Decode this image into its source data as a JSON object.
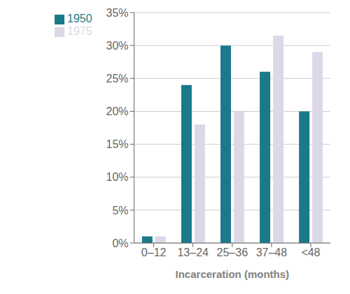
{
  "chart_data": {
    "type": "bar",
    "xlabel": "Incarceration (months)",
    "categories": [
      "0–12",
      "13–24",
      "25–36",
      "37–48",
      "<48"
    ],
    "series": [
      {
        "name": "1950",
        "color": "#1a7a8a",
        "values": [
          0.01,
          0.24,
          0.3,
          0.26,
          0.2
        ]
      },
      {
        "name": "1975",
        "color": "#ddd8e8",
        "values": [
          0.01,
          0.18,
          0.2,
          0.315,
          0.29
        ]
      }
    ],
    "ylim": [
      0,
      0.35
    ],
    "yticks": [
      {
        "value": 0.0,
        "label": "0%"
      },
      {
        "value": 0.05,
        "label": "5%"
      },
      {
        "value": 0.1,
        "label": "10%"
      },
      {
        "value": 0.15,
        "label": "15%"
      },
      {
        "value": 0.2,
        "label": "20%"
      },
      {
        "value": 0.25,
        "label": "25%"
      },
      {
        "value": 0.3,
        "label": "30%"
      },
      {
        "value": 0.35,
        "label": "35%"
      }
    ],
    "grid": true,
    "legend": "upper left"
  }
}
